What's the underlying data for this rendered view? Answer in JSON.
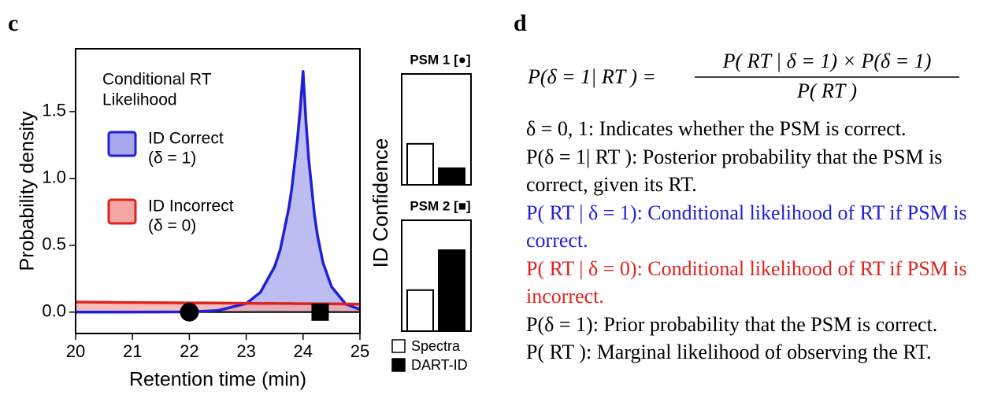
{
  "panel_c": {
    "label": "c",
    "chart_data": [
      {
        "type": "area",
        "legend_title": [
          "Conditional RT",
          "Likelihood"
        ],
        "xlabel": "Retention time (min)",
        "ylabel": "Probability density",
        "x": [
          20,
          21,
          22,
          22.5,
          23,
          23.25,
          23.5,
          23.6,
          23.75,
          23.8,
          23.9,
          23.95,
          24,
          24.05,
          24.1,
          24.2,
          24.25,
          24.35,
          24.5,
          24.75,
          25
        ],
        "series": [
          {
            "name": "ID Correct",
            "note": "(δ = 1)",
            "color": "#1f1fd8",
            "fill": "#a7a7ee",
            "values": [
              0,
              0,
              0.002,
              0.012,
              0.064,
              0.148,
              0.34,
              0.47,
              0.78,
              0.92,
              1.29,
              1.52,
              1.8,
              1.43,
              1.14,
              0.73,
              0.58,
              0.37,
              0.19,
              0.06,
              0.02
            ]
          },
          {
            "name": "ID Incorrect",
            "note": "(δ = 0)",
            "color": "#e3211c",
            "fill": "#f2a7a5",
            "values": [
              0.075,
              0.072,
              0.069,
              0.068,
              0.066,
              0.065,
              0.065,
              0.064,
              0.064,
              0.064,
              0.063,
              0.063,
              0.063,
              0.063,
              0.063,
              0.062,
              0.062,
              0.062,
              0.062,
              0.061,
              0.06
            ]
          }
        ],
        "points": [
          {
            "x": 22,
            "y": 0,
            "marker": "circle"
          },
          {
            "x": 24.3,
            "y": 0,
            "marker": "square"
          }
        ],
        "xlim": [
          20,
          25
        ],
        "ylim": [
          -0.16,
          1.97
        ],
        "xticks": [
          20,
          21,
          22,
          23,
          24,
          25
        ],
        "yticks": [
          {
            "value": 0,
            "label": "0.0"
          },
          0.5,
          {
            "value": 1,
            "label": "1.0"
          },
          1.5
        ]
      },
      {
        "type": "bar",
        "ylabel": "ID Confidence",
        "categories": [
          "Spectra",
          "DART-ID"
        ],
        "colors": [
          "#ffffff",
          "#000000"
        ],
        "ylim": [
          0,
          1
        ],
        "panels": [
          {
            "title": "PSM 1 [●]",
            "values": [
              0.37,
              0.15
            ]
          },
          {
            "title": "PSM 2 [■]",
            "values": [
              0.37,
              0.73
            ]
          }
        ]
      }
    ]
  },
  "panel_d": {
    "label": "d",
    "equation": {
      "lhs": "P(δ = 1| RT ) =",
      "numerator": "P( RT | δ = 1) × P(δ = 1)",
      "denominator": "P( RT )"
    },
    "definitions": [
      {
        "text": "δ = 0, 1: Indicates whether the PSM is correct."
      },
      {
        "text": "P(δ = 1| RT ): Posterior probability that the PSM is correct, given its RT."
      },
      {
        "text": "P( RT | δ = 1): Conditional likelihood of RT if PSM is correct.",
        "color": "#1f1fd8"
      },
      {
        "text": "P( RT | δ = 0): Conditional likelihood of RT if PSM is incorrect.",
        "color": "#e3211c"
      },
      {
        "text": "P(δ = 1): Prior probability that the PSM is correct."
      },
      {
        "text": "P( RT ): Marginal likelihood of observing the RT."
      }
    ]
  }
}
